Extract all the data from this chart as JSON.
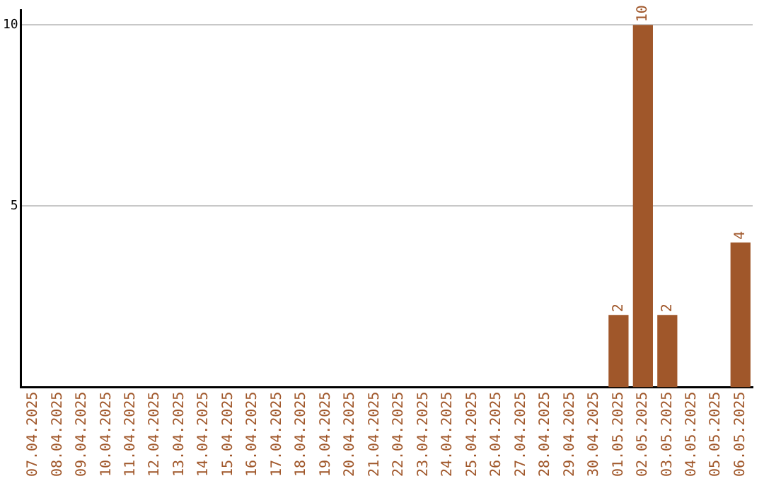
{
  "chart_data": {
    "type": "bar",
    "categories": [
      "07.04.2025",
      "08.04.2025",
      "09.04.2025",
      "10.04.2025",
      "11.04.2025",
      "12.04.2025",
      "13.04.2025",
      "14.04.2025",
      "15.04.2025",
      "16.04.2025",
      "17.04.2025",
      "18.04.2025",
      "19.04.2025",
      "20.04.2025",
      "21.04.2025",
      "22.04.2025",
      "23.04.2025",
      "24.04.2025",
      "25.04.2025",
      "26.04.2025",
      "27.04.2025",
      "28.04.2025",
      "29.04.2025",
      "30.04.2025",
      "01.05.2025",
      "02.05.2025",
      "03.05.2025",
      "04.05.2025",
      "05.05.2025",
      "06.05.2025"
    ],
    "values": [
      0,
      0,
      0,
      0,
      0,
      0,
      0,
      0,
      0,
      0,
      0,
      0,
      0,
      0,
      0,
      0,
      0,
      0,
      0,
      0,
      0,
      0,
      0,
      0,
      2,
      10,
      2,
      0,
      0,
      4
    ],
    "value_labels": [
      null,
      null,
      null,
      null,
      null,
      null,
      null,
      null,
      null,
      null,
      null,
      null,
      null,
      null,
      null,
      null,
      null,
      null,
      null,
      null,
      null,
      null,
      null,
      null,
      "2",
      "10",
      "2",
      null,
      null,
      "4"
    ],
    "color": "#a0572a",
    "ylim": [
      0,
      10.4
    ],
    "yticks": [
      5,
      10
    ],
    "grid": "y",
    "legend": false
  }
}
